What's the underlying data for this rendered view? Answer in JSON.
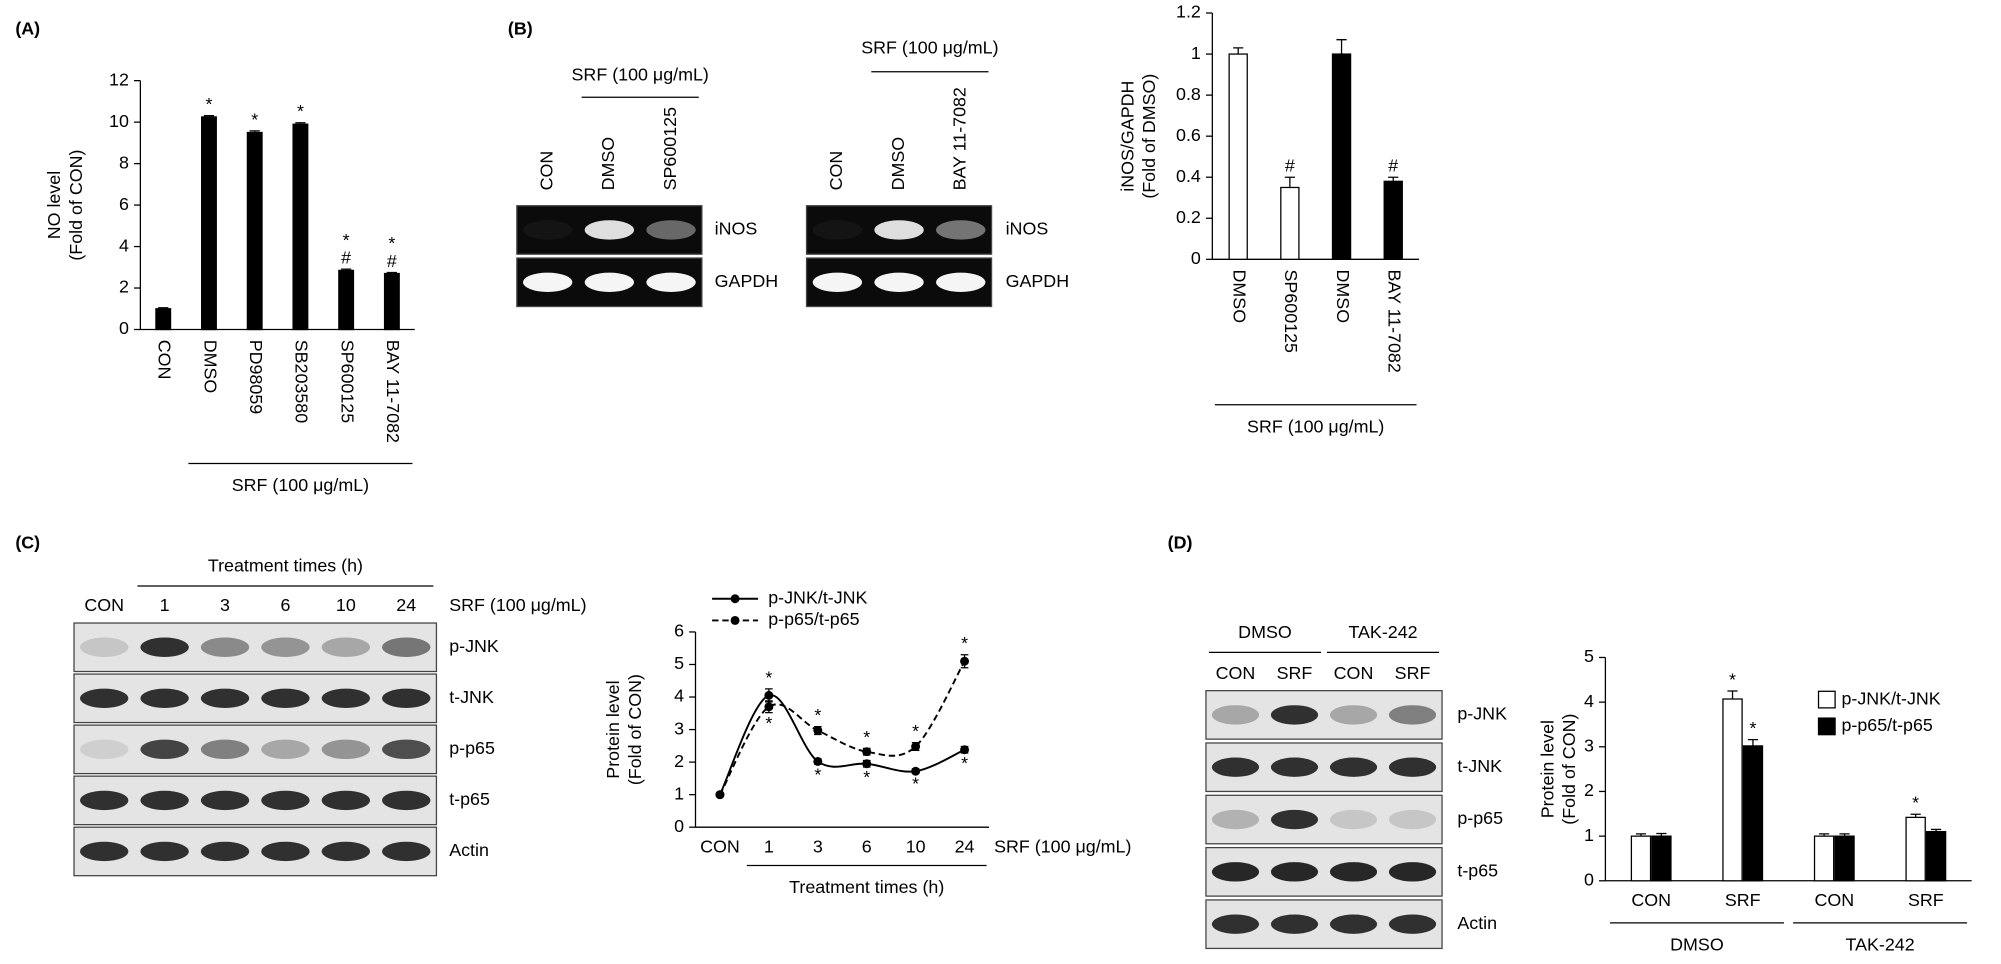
{
  "panel_labels": [
    "(A)",
    "(B)",
    "(C)",
    "(D)"
  ],
  "chart_data": [
    {
      "type": "bar",
      "ylabel": [
        "NO level",
        "(Fold of CON)"
      ],
      "categories": [
        "CON",
        "DMSO",
        "PD98059",
        "SB203580",
        "SP600125",
        "BAY 11-7082"
      ],
      "values": [
        1,
        10.25,
        9.5,
        9.9,
        2.85,
        2.7
      ],
      "errors": [
        0.05,
        0.06,
        0.08,
        0.07,
        0.06,
        0.05
      ],
      "color": "#000000",
      "annotations": [
        [],
        [
          "*"
        ],
        [
          "*"
        ],
        [
          "*"
        ],
        [
          "*",
          "#"
        ],
        [
          "*",
          "#"
        ]
      ],
      "group_label": "SRF (100 μg/mL)",
      "ylim": [
        0,
        12
      ],
      "yticks": [
        0,
        2,
        4,
        6,
        8,
        10,
        12
      ]
    },
    {
      "type": "bar",
      "ylabel": [
        "iNOS/GAPDH",
        "(Fold of DMSO)"
      ],
      "categories": [
        "DMSO",
        "SP600125",
        "DMSO",
        "BAY 11-7082"
      ],
      "values": [
        1,
        0.35,
        1,
        0.38
      ],
      "errors": [
        0.03,
        0.05,
        0.07,
        0.02
      ],
      "colors": [
        "#ffffff",
        "#ffffff",
        "#000000",
        "#000000"
      ],
      "annotations": [
        [],
        [
          "#"
        ],
        [],
        [
          "#"
        ]
      ],
      "group_label": "SRF (100 μg/mL)",
      "ylim": [
        0,
        1.2
      ],
      "yticks": [
        0,
        0.2,
        0.4,
        0.6,
        0.8,
        1,
        1.2
      ]
    },
    {
      "type": "line",
      "ylabel": [
        "Protein level",
        "(Fold of CON)"
      ],
      "categories": [
        "CON",
        "1",
        "3",
        "6",
        "10",
        "24"
      ],
      "group_label": "Treatment times (h)",
      "side_label": "SRF (100 μg/mL)",
      "series": [
        {
          "name": "p-JNK/t-JNK",
          "color": "#000000",
          "line_style": "solid",
          "values": [
            1,
            4.05,
            2.02,
            1.95,
            1.72,
            2.38
          ],
          "errors": [
            0.05,
            0.2,
            0.08,
            0.1,
            0.07,
            0.1
          ],
          "annotations": [
            [],
            [
              "*"
            ],
            [
              "*"
            ],
            [
              "*"
            ],
            [
              "*"
            ],
            [
              "*"
            ]
          ]
        },
        {
          "name": "p-p65/t-p65",
          "color": "#000000",
          "line_style": "dashed",
          "values": [
            1,
            3.7,
            2.97,
            2.32,
            2.48,
            5.1
          ],
          "errors": [
            0.05,
            0.18,
            0.12,
            0.1,
            0.12,
            0.2
          ],
          "annotations": [
            [],
            [
              "*"
            ],
            [
              "*"
            ],
            [
              "*"
            ],
            [
              "*"
            ],
            [
              "*"
            ]
          ]
        }
      ],
      "ylim": [
        0,
        6
      ],
      "yticks": [
        0,
        1,
        2,
        3,
        4,
        5,
        6
      ]
    },
    {
      "type": "grouped_bar",
      "ylabel": [
        "Protein level",
        "(Fold of CON)"
      ],
      "categories": [
        "CON",
        "SRF",
        "CON",
        "SRF"
      ],
      "groups": [
        "DMSO",
        "TAK-242"
      ],
      "series": [
        {
          "name": "p-JNK/t-JNK",
          "color": "#ffffff",
          "values": [
            1,
            4.07,
            1,
            1.42
          ],
          "errors": [
            0.05,
            0.18,
            0.05,
            0.07
          ],
          "annotations": [
            [],
            [
              "*"
            ],
            [],
            [
              "*"
            ]
          ]
        },
        {
          "name": "p-p65/t-p65",
          "color": "#000000",
          "values": [
            1,
            3.02,
            1,
            1.1
          ],
          "errors": [
            0.06,
            0.14,
            0.05,
            0.05
          ],
          "annotations": [
            [],
            [
              "*"
            ],
            [],
            []
          ]
        }
      ],
      "ylim": [
        0,
        5
      ],
      "yticks": [
        0,
        1,
        2,
        3,
        4,
        5
      ]
    }
  ],
  "blots": [
    {
      "header": "SRF (100 μg/mL)",
      "lanes": [
        "CON",
        "DMSO",
        "SP600125"
      ],
      "rows": [
        "iNOS",
        "GAPDH"
      ]
    },
    {
      "header": "SRF (100 μg/mL)",
      "lanes": [
        "CON",
        "DMSO",
        "BAY 11-7082"
      ],
      "rows": [
        "iNOS",
        "GAPDH"
      ]
    },
    {
      "header": "Treatment times (h)",
      "side_label": "SRF (100 μg/mL)",
      "lanes": [
        "CON",
        "1",
        "3",
        "6",
        "10",
        "24"
      ],
      "rows": [
        "p-JNK",
        "t-JNK",
        "p-p65",
        "t-p65",
        "Actin"
      ]
    },
    {
      "groups": [
        "DMSO",
        "TAK-242"
      ],
      "lanes": [
        "CON",
        "SRF",
        "CON",
        "SRF"
      ],
      "rows": [
        "p-JNK",
        "t-JNK",
        "p-p65",
        "t-p65",
        "Actin"
      ]
    }
  ]
}
